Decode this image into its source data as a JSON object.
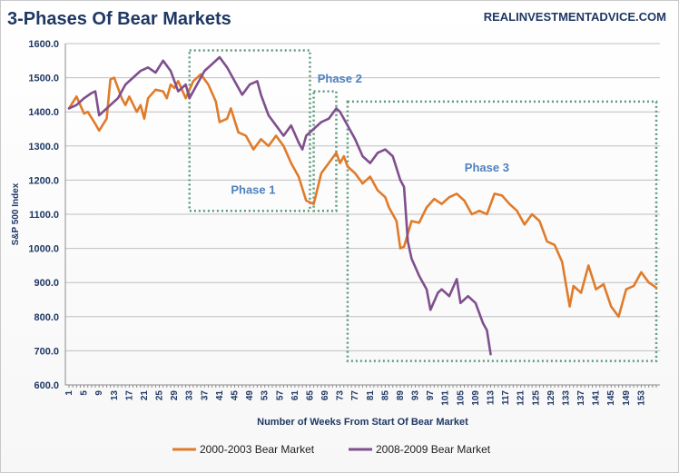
{
  "chart_data": {
    "type": "line",
    "title": "3-Phases Of Bear Markets",
    "source": "REALINVESTMENTADVICE.COM",
    "xlabel": "Number of Weeks From Start Of Bear Market",
    "ylabel": "S&P 500 Index",
    "ylim": [
      600,
      1600
    ],
    "yticks": [
      600,
      700,
      800,
      900,
      1000,
      1100,
      1200,
      1300,
      1400,
      1500,
      1600
    ],
    "ytick_labels": [
      "600.0",
      "700.0",
      "800.0",
      "900.0",
      "1000.0",
      "1100.0",
      "1200.0",
      "1300.0",
      "1400.0",
      "1500.0",
      "1600.0"
    ],
    "xlim": [
      1,
      157
    ],
    "xticks": [
      1,
      5,
      9,
      13,
      17,
      21,
      25,
      29,
      33,
      37,
      41,
      45,
      49,
      53,
      57,
      61,
      65,
      69,
      73,
      77,
      81,
      85,
      89,
      93,
      97,
      101,
      105,
      109,
      113,
      117,
      121,
      125,
      129,
      133,
      137,
      141,
      145,
      149,
      153
    ],
    "xtick_labels": [
      "1",
      "5",
      "9",
      "13",
      "17",
      "21",
      "25",
      "29",
      "33",
      "37",
      "41",
      "45",
      "49",
      "53",
      "57",
      "61",
      "65",
      "69",
      "73",
      "77",
      "81",
      "85",
      "89",
      "93",
      "97",
      "101",
      "105",
      "109",
      "113",
      "117",
      "121",
      "125",
      "129",
      "133",
      "137",
      "141",
      "145",
      "149",
      "153"
    ],
    "grid": "horizontal",
    "legend_position": "bottom",
    "series": [
      {
        "name": "2000-2003 Bear Market",
        "color": "#e07b2a",
        "points": [
          [
            1,
            1410
          ],
          [
            3,
            1445
          ],
          [
            5,
            1395
          ],
          [
            6,
            1400
          ],
          [
            8,
            1365
          ],
          [
            9,
            1345
          ],
          [
            11,
            1380
          ],
          [
            12,
            1495
          ],
          [
            13,
            1500
          ],
          [
            15,
            1440
          ],
          [
            16,
            1420
          ],
          [
            17,
            1445
          ],
          [
            19,
            1400
          ],
          [
            20,
            1420
          ],
          [
            21,
            1380
          ],
          [
            22,
            1440
          ],
          [
            24,
            1465
          ],
          [
            26,
            1460
          ],
          [
            27,
            1440
          ],
          [
            28,
            1480
          ],
          [
            29,
            1470
          ],
          [
            30,
            1490
          ],
          [
            32,
            1440
          ],
          [
            34,
            1490
          ],
          [
            36,
            1510
          ],
          [
            38,
            1480
          ],
          [
            40,
            1430
          ],
          [
            41,
            1370
          ],
          [
            43,
            1380
          ],
          [
            44,
            1410
          ],
          [
            46,
            1340
          ],
          [
            48,
            1330
          ],
          [
            50,
            1290
          ],
          [
            52,
            1320
          ],
          [
            54,
            1300
          ],
          [
            56,
            1330
          ],
          [
            58,
            1300
          ],
          [
            60,
            1250
          ],
          [
            62,
            1210
          ],
          [
            64,
            1140
          ],
          [
            66,
            1130
          ],
          [
            68,
            1220
          ],
          [
            70,
            1250
          ],
          [
            72,
            1280
          ],
          [
            73,
            1250
          ],
          [
            74,
            1270
          ],
          [
            75,
            1240
          ],
          [
            77,
            1220
          ],
          [
            79,
            1190
          ],
          [
            81,
            1210
          ],
          [
            83,
            1170
          ],
          [
            85,
            1150
          ],
          [
            86,
            1120
          ],
          [
            88,
            1080
          ],
          [
            89,
            1000
          ],
          [
            90,
            1005
          ],
          [
            92,
            1080
          ],
          [
            94,
            1075
          ],
          [
            96,
            1120
          ],
          [
            98,
            1145
          ],
          [
            100,
            1130
          ],
          [
            102,
            1150
          ],
          [
            104,
            1160
          ],
          [
            106,
            1140
          ],
          [
            108,
            1100
          ],
          [
            110,
            1110
          ],
          [
            112,
            1100
          ],
          [
            114,
            1160
          ],
          [
            116,
            1155
          ],
          [
            118,
            1130
          ],
          [
            120,
            1110
          ],
          [
            122,
            1070
          ],
          [
            124,
            1100
          ],
          [
            126,
            1080
          ],
          [
            128,
            1020
          ],
          [
            130,
            1010
          ],
          [
            132,
            960
          ],
          [
            134,
            830
          ],
          [
            135,
            890
          ],
          [
            137,
            870
          ],
          [
            139,
            950
          ],
          [
            141,
            880
          ],
          [
            143,
            895
          ],
          [
            145,
            830
          ],
          [
            147,
            800
          ],
          [
            149,
            880
          ],
          [
            151,
            890
          ],
          [
            153,
            930
          ],
          [
            155,
            900
          ],
          [
            157,
            885
          ]
        ]
      },
      {
        "name": "2008-2009 Bear Market",
        "color": "#7f4f8e",
        "points": [
          [
            1,
            1410
          ],
          [
            3,
            1420
          ],
          [
            5,
            1440
          ],
          [
            7,
            1455
          ],
          [
            8,
            1460
          ],
          [
            9,
            1390
          ],
          [
            11,
            1410
          ],
          [
            13,
            1430
          ],
          [
            14,
            1440
          ],
          [
            16,
            1480
          ],
          [
            18,
            1500
          ],
          [
            20,
            1520
          ],
          [
            22,
            1530
          ],
          [
            24,
            1515
          ],
          [
            26,
            1550
          ],
          [
            28,
            1520
          ],
          [
            30,
            1460
          ],
          [
            32,
            1480
          ],
          [
            33,
            1440
          ],
          [
            35,
            1480
          ],
          [
            37,
            1520
          ],
          [
            39,
            1540
          ],
          [
            41,
            1560
          ],
          [
            43,
            1530
          ],
          [
            45,
            1490
          ],
          [
            47,
            1450
          ],
          [
            49,
            1480
          ],
          [
            51,
            1490
          ],
          [
            52,
            1450
          ],
          [
            54,
            1390
          ],
          [
            56,
            1360
          ],
          [
            58,
            1330
          ],
          [
            60,
            1360
          ],
          [
            62,
            1310
          ],
          [
            63,
            1290
          ],
          [
            64,
            1330
          ],
          [
            66,
            1350
          ],
          [
            68,
            1370
          ],
          [
            70,
            1380
          ],
          [
            72,
            1410
          ],
          [
            73,
            1400
          ],
          [
            75,
            1360
          ],
          [
            77,
            1320
          ],
          [
            79,
            1270
          ],
          [
            81,
            1250
          ],
          [
            83,
            1280
          ],
          [
            85,
            1290
          ],
          [
            87,
            1270
          ],
          [
            89,
            1200
          ],
          [
            90,
            1180
          ],
          [
            91,
            1020
          ],
          [
            92,
            970
          ],
          [
            94,
            920
          ],
          [
            96,
            880
          ],
          [
            97,
            820
          ],
          [
            99,
            870
          ],
          [
            100,
            880
          ],
          [
            102,
            860
          ],
          [
            104,
            910
          ],
          [
            105,
            840
          ],
          [
            107,
            860
          ],
          [
            109,
            840
          ],
          [
            111,
            780
          ],
          [
            112,
            760
          ],
          [
            113,
            690
          ]
        ]
      }
    ],
    "phases": [
      {
        "label": "Phase 1",
        "x_range": [
          33,
          65
        ],
        "y_range": [
          1110,
          1580
        ]
      },
      {
        "label": "Phase 2",
        "x_range": [
          66,
          72
        ],
        "y_range": [
          1110,
          1460
        ]
      },
      {
        "label": "Phase 3",
        "x_range": [
          75,
          157
        ],
        "y_range": [
          670,
          1430
        ]
      }
    ]
  }
}
